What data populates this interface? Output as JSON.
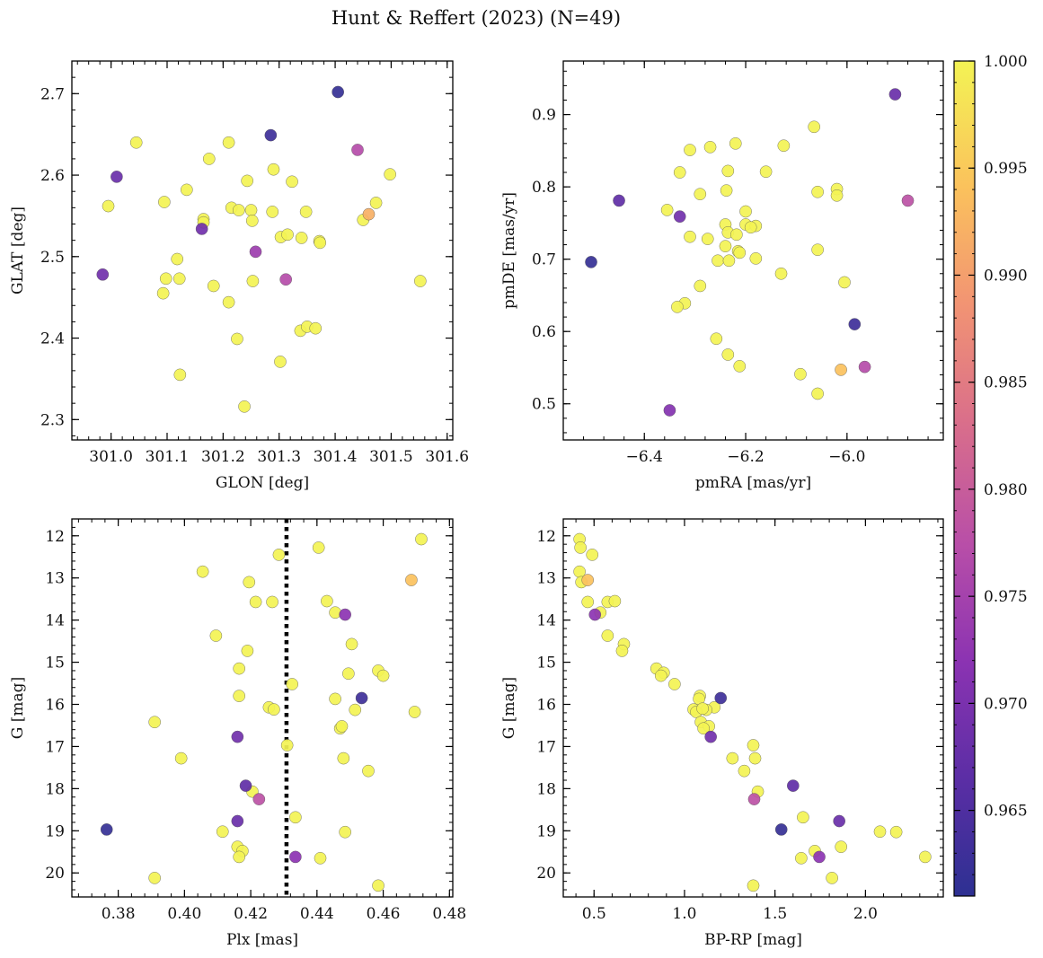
{
  "title": "Hunt & Reffert (2023) (N=49)",
  "colorbar": {
    "min": 0.961,
    "max": 1.0,
    "ticks": [
      0.965,
      0.97,
      0.975,
      0.98,
      0.985,
      0.99,
      0.995,
      1.0
    ],
    "tick_labels": [
      "0.965",
      "0.970",
      "0.975",
      "0.980",
      "0.985",
      "0.990",
      "0.995",
      "1.000"
    ],
    "colormap": "plasma"
  },
  "chart_data": [
    {
      "type": "scatter",
      "xlabel": "GLON [deg]",
      "ylabel": "GLAT [deg]",
      "xlim": [
        300.93,
        301.61
      ],
      "ylim": [
        2.275,
        2.74
      ],
      "xticks": [
        301.0,
        301.1,
        301.2,
        301.3,
        301.4,
        301.5,
        301.6
      ],
      "xtick_labels": [
        "301.0",
        "301.1",
        "301.2",
        "301.3",
        "301.4",
        "301.5",
        "301.6"
      ],
      "yticks": [
        2.3,
        2.4,
        2.5,
        2.6,
        2.7
      ],
      "ytick_labels": [
        "2.3",
        "2.4",
        "2.5",
        "2.6",
        "2.7"
      ],
      "points": [
        [
          301.405,
          2.702,
          0.962
        ],
        [
          301.285,
          2.649,
          0.963
        ],
        [
          301.01,
          2.598,
          0.968
        ],
        [
          300.985,
          2.478,
          0.969
        ],
        [
          301.162,
          2.534,
          0.969
        ],
        [
          301.258,
          2.506,
          0.974
        ],
        [
          301.312,
          2.472,
          0.977
        ],
        [
          301.44,
          2.631,
          0.977
        ],
        [
          301.46,
          2.552,
          0.992
        ],
        [
          301.045,
          2.64,
          1.0
        ],
        [
          301.175,
          2.62,
          1.0
        ],
        [
          301.21,
          2.64,
          1.0
        ],
        [
          300.995,
          2.562,
          1.0
        ],
        [
          301.095,
          2.567,
          1.0
        ],
        [
          301.135,
          2.582,
          1.0
        ],
        [
          301.165,
          2.546,
          1.0
        ],
        [
          301.165,
          2.542,
          1.0
        ],
        [
          301.215,
          2.56,
          1.0
        ],
        [
          301.228,
          2.557,
          1.0
        ],
        [
          301.243,
          2.593,
          1.0
        ],
        [
          301.25,
          2.557,
          1.0
        ],
        [
          301.252,
          2.544,
          1.0
        ],
        [
          301.288,
          2.555,
          1.0
        ],
        [
          301.29,
          2.607,
          1.0
        ],
        [
          301.323,
          2.592,
          1.0
        ],
        [
          301.303,
          2.524,
          1.0
        ],
        [
          301.315,
          2.527,
          1.0
        ],
        [
          301.34,
          2.523,
          1.0
        ],
        [
          301.348,
          2.555,
          1.0
        ],
        [
          301.372,
          2.519,
          1.0
        ],
        [
          301.373,
          2.517,
          1.0
        ],
        [
          301.45,
          2.545,
          1.0
        ],
        [
          301.473,
          2.566,
          1.0
        ],
        [
          301.498,
          2.601,
          1.0
        ],
        [
          301.552,
          2.47,
          1.0
        ],
        [
          301.098,
          2.473,
          1.0
        ],
        [
          301.118,
          2.497,
          1.0
        ],
        [
          301.122,
          2.473,
          1.0
        ],
        [
          301.093,
          2.455,
          1.0
        ],
        [
          301.183,
          2.464,
          1.0
        ],
        [
          301.253,
          2.47,
          1.0
        ],
        [
          301.21,
          2.444,
          1.0
        ],
        [
          301.225,
          2.399,
          1.0
        ],
        [
          301.123,
          2.355,
          1.0
        ],
        [
          301.238,
          2.316,
          1.0
        ],
        [
          301.302,
          2.371,
          1.0
        ],
        [
          301.338,
          2.409,
          1.0
        ],
        [
          301.35,
          2.414,
          1.0
        ],
        [
          301.365,
          2.412,
          1.0
        ]
      ]
    },
    {
      "type": "scatter",
      "xlabel": "pmRA [mas/yr]",
      "ylabel": "pmDE [mas/yr]",
      "xlim": [
        -6.56,
        -5.81
      ],
      "ylim": [
        0.45,
        0.974
      ],
      "xticks": [
        -6.4,
        -6.2,
        -6.0
      ],
      "xtick_labels": [
        "−6.4",
        "−6.2",
        "−6.0"
      ],
      "yticks": [
        0.5,
        0.6,
        0.7,
        0.8,
        0.9
      ],
      "ytick_labels": [
        "0.5",
        "0.6",
        "0.7",
        "0.8",
        "0.9"
      ],
      "points": [
        [
          -6.505,
          0.696,
          0.962
        ],
        [
          -5.985,
          0.61,
          0.963
        ],
        [
          -5.905,
          0.928,
          0.968
        ],
        [
          -6.45,
          0.781,
          0.967
        ],
        [
          -6.33,
          0.759,
          0.969
        ],
        [
          -6.35,
          0.491,
          0.971
        ],
        [
          -5.965,
          0.551,
          0.977
        ],
        [
          -5.88,
          0.781,
          0.978
        ],
        [
          -6.012,
          0.547,
          0.994
        ],
        [
          -6.31,
          0.851,
          1.0
        ],
        [
          -6.27,
          0.855,
          1.0
        ],
        [
          -6.22,
          0.86,
          1.0
        ],
        [
          -6.125,
          0.857,
          1.0
        ],
        [
          -6.065,
          0.883,
          1.0
        ],
        [
          -6.33,
          0.82,
          1.0
        ],
        [
          -6.235,
          0.822,
          1.0
        ],
        [
          -6.16,
          0.821,
          1.0
        ],
        [
          -6.29,
          0.79,
          1.0
        ],
        [
          -6.238,
          0.795,
          1.0
        ],
        [
          -6.058,
          0.793,
          1.0
        ],
        [
          -6.02,
          0.797,
          1.0
        ],
        [
          -6.02,
          0.788,
          1.0
        ],
        [
          -6.355,
          0.768,
          1.0
        ],
        [
          -6.2,
          0.766,
          1.0
        ],
        [
          -6.24,
          0.748,
          1.0
        ],
        [
          -6.2,
          0.748,
          1.0
        ],
        [
          -6.18,
          0.746,
          1.0
        ],
        [
          -6.19,
          0.744,
          1.0
        ],
        [
          -6.31,
          0.731,
          1.0
        ],
        [
          -6.275,
          0.728,
          1.0
        ],
        [
          -6.235,
          0.737,
          1.0
        ],
        [
          -6.218,
          0.734,
          1.0
        ],
        [
          -6.24,
          0.718,
          1.0
        ],
        [
          -6.215,
          0.711,
          1.0
        ],
        [
          -6.212,
          0.709,
          1.0
        ],
        [
          -6.058,
          0.713,
          1.0
        ],
        [
          -6.255,
          0.698,
          1.0
        ],
        [
          -6.233,
          0.698,
          1.0
        ],
        [
          -6.18,
          0.701,
          1.0
        ],
        [
          -6.13,
          0.68,
          1.0
        ],
        [
          -6.005,
          0.668,
          1.0
        ],
        [
          -6.29,
          0.663,
          1.0
        ],
        [
          -6.32,
          0.639,
          1.0
        ],
        [
          -6.335,
          0.634,
          1.0
        ],
        [
          -6.258,
          0.59,
          1.0
        ],
        [
          -6.235,
          0.568,
          1.0
        ],
        [
          -6.212,
          0.552,
          1.0
        ],
        [
          -6.092,
          0.541,
          1.0
        ],
        [
          -6.058,
          0.514,
          1.0
        ]
      ]
    },
    {
      "type": "scatter",
      "xlabel": "Plx [mas]",
      "ylabel": "G [mag]",
      "xlim": [
        0.366,
        0.481
      ],
      "ylim": [
        20.57,
        11.6
      ],
      "y_inverted": true,
      "xticks": [
        0.38,
        0.4,
        0.42,
        0.44,
        0.46,
        0.48
      ],
      "xtick_labels": [
        "0.38",
        "0.40",
        "0.42",
        "0.44",
        "0.46",
        "0.48"
      ],
      "yticks": [
        12,
        13,
        14,
        15,
        16,
        17,
        18,
        19,
        20
      ],
      "ytick_labels": [
        "12",
        "13",
        "14",
        "15",
        "16",
        "17",
        "18",
        "19",
        "20"
      ],
      "vline": {
        "x": 0.4308,
        "style": "dotted"
      },
      "points": [
        [
          0.3765,
          18.97,
          0.962
        ],
        [
          0.4535,
          15.85,
          0.963
        ],
        [
          0.4185,
          17.93,
          0.967
        ],
        [
          0.416,
          18.77,
          0.968
        ],
        [
          0.416,
          16.77,
          0.969
        ],
        [
          0.4485,
          13.87,
          0.972
        ],
        [
          0.4335,
          19.62,
          0.972
        ],
        [
          0.4225,
          18.25,
          0.978
        ],
        [
          0.4685,
          13.05,
          0.994
        ],
        [
          0.4405,
          12.28,
          1.0
        ],
        [
          0.4285,
          12.45,
          1.0
        ],
        [
          0.4715,
          12.08,
          1.0
        ],
        [
          0.4055,
          12.85,
          1.0
        ],
        [
          0.4195,
          13.1,
          1.0
        ],
        [
          0.4215,
          13.57,
          1.0
        ],
        [
          0.4265,
          13.57,
          1.0
        ],
        [
          0.443,
          13.55,
          1.0
        ],
        [
          0.4455,
          13.82,
          1.0
        ],
        [
          0.4095,
          14.37,
          1.0
        ],
        [
          0.419,
          14.73,
          1.0
        ],
        [
          0.4505,
          14.57,
          1.0
        ],
        [
          0.4165,
          15.15,
          1.0
        ],
        [
          0.4585,
          15.2,
          1.0
        ],
        [
          0.46,
          15.32,
          1.0
        ],
        [
          0.4495,
          15.27,
          1.0
        ],
        [
          0.4325,
          15.52,
          1.0
        ],
        [
          0.4165,
          15.8,
          1.0
        ],
        [
          0.4455,
          15.87,
          1.0
        ],
        [
          0.4255,
          16.07,
          1.0
        ],
        [
          0.427,
          16.12,
          1.0
        ],
        [
          0.4515,
          16.13,
          1.0
        ],
        [
          0.4695,
          16.18,
          1.0
        ],
        [
          0.447,
          16.57,
          1.0
        ],
        [
          0.4475,
          16.52,
          1.0
        ],
        [
          0.391,
          16.42,
          1.0
        ],
        [
          0.431,
          16.97,
          1.0
        ],
        [
          0.399,
          17.28,
          1.0
        ],
        [
          0.448,
          17.28,
          1.0
        ],
        [
          0.4555,
          17.58,
          1.0
        ],
        [
          0.4205,
          18.07,
          1.0
        ],
        [
          0.4335,
          18.68,
          1.0
        ],
        [
          0.4115,
          19.02,
          1.0
        ],
        [
          0.4485,
          19.03,
          1.0
        ],
        [
          0.416,
          19.38,
          1.0
        ],
        [
          0.4175,
          19.48,
          1.0
        ],
        [
          0.4165,
          19.62,
          1.0
        ],
        [
          0.441,
          19.65,
          1.0
        ],
        [
          0.391,
          20.12,
          1.0
        ],
        [
          0.4585,
          20.3,
          1.0
        ]
      ]
    },
    {
      "type": "scatter",
      "xlabel": "BP-RP [mag]",
      "ylabel": "G [mag]",
      "xlim": [
        0.33,
        2.43
      ],
      "ylim": [
        20.57,
        11.6
      ],
      "y_inverted": true,
      "xticks": [
        0.5,
        1.0,
        1.5,
        2.0
      ],
      "xtick_labels": [
        "0.5",
        "1.0",
        "1.5",
        "2.0"
      ],
      "yticks": [
        12,
        13,
        14,
        15,
        16,
        17,
        18,
        19,
        20
      ],
      "ytick_labels": [
        "12",
        "13",
        "14",
        "15",
        "16",
        "17",
        "18",
        "19",
        "20"
      ],
      "points": [
        [
          1.535,
          18.97,
          0.962
        ],
        [
          1.2,
          15.85,
          0.963
        ],
        [
          1.6,
          17.93,
          0.967
        ],
        [
          1.855,
          18.77,
          0.968
        ],
        [
          1.145,
          16.77,
          0.969
        ],
        [
          0.505,
          13.87,
          0.972
        ],
        [
          1.745,
          19.62,
          0.972
        ],
        [
          1.385,
          18.25,
          0.978
        ],
        [
          0.465,
          13.05,
          0.994
        ],
        [
          0.42,
          12.08,
          1.0
        ],
        [
          0.425,
          12.28,
          1.0
        ],
        [
          0.49,
          12.45,
          1.0
        ],
        [
          0.42,
          12.85,
          1.0
        ],
        [
          0.43,
          13.1,
          1.0
        ],
        [
          0.465,
          13.57,
          1.0
        ],
        [
          0.575,
          13.57,
          1.0
        ],
        [
          0.615,
          13.55,
          1.0
        ],
        [
          0.535,
          13.82,
          1.0
        ],
        [
          0.575,
          14.37,
          1.0
        ],
        [
          0.665,
          14.57,
          1.0
        ],
        [
          0.655,
          14.73,
          1.0
        ],
        [
          0.845,
          15.15,
          1.0
        ],
        [
          0.885,
          15.25,
          1.0
        ],
        [
          0.87,
          15.32,
          1.0
        ],
        [
          0.945,
          15.52,
          1.0
        ],
        [
          1.085,
          15.8,
          1.0
        ],
        [
          1.08,
          15.87,
          1.0
        ],
        [
          1.165,
          16.07,
          1.0
        ],
        [
          1.05,
          16.12,
          1.0
        ],
        [
          1.12,
          16.13,
          1.0
        ],
        [
          1.065,
          16.18,
          1.0
        ],
        [
          1.09,
          16.42,
          1.0
        ],
        [
          1.135,
          16.52,
          1.0
        ],
        [
          1.105,
          16.57,
          1.0
        ],
        [
          1.38,
          16.97,
          1.0
        ],
        [
          1.265,
          17.28,
          1.0
        ],
        [
          1.39,
          17.28,
          1.0
        ],
        [
          1.33,
          17.58,
          1.0
        ],
        [
          1.405,
          18.07,
          1.0
        ],
        [
          1.655,
          18.68,
          1.0
        ],
        [
          2.08,
          19.02,
          1.0
        ],
        [
          2.17,
          19.03,
          1.0
        ],
        [
          1.865,
          19.38,
          1.0
        ],
        [
          1.72,
          19.48,
          1.0
        ],
        [
          2.33,
          19.62,
          1.0
        ],
        [
          1.645,
          19.65,
          1.0
        ],
        [
          1.815,
          20.12,
          1.0
        ],
        [
          1.38,
          20.3,
          1.0
        ],
        [
          1.1,
          16.1,
          1.0
        ]
      ]
    }
  ]
}
